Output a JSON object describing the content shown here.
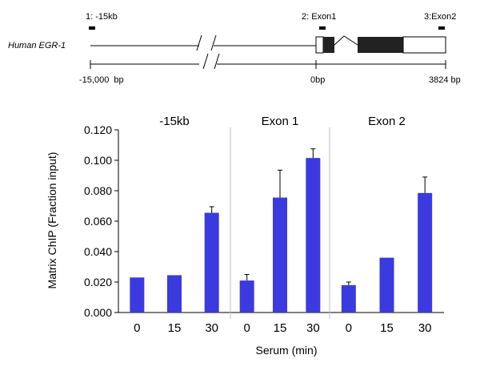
{
  "gene_map": {
    "gene_label": "Human EGR-1",
    "probes": [
      {
        "id": "probe-1",
        "label": "1: -15kb"
      },
      {
        "id": "probe-2",
        "label": "2: Exon1"
      },
      {
        "id": "probe-3",
        "label": "3:Exon2"
      }
    ],
    "scale": {
      "left": "-15,000  bp",
      "mid": "0bp",
      "right": "3824 bp"
    }
  },
  "chart_data": {
    "type": "bar",
    "ylabel": "Matrix ChIP (Fraction input)",
    "xlabel": "Serum (min)",
    "ylim": [
      0,
      0.12
    ],
    "yticks": [
      "0.000",
      "0.020",
      "0.040",
      "0.060",
      "0.080",
      "0.100",
      "0.120"
    ],
    "bar_color": "#3a3adf",
    "panels": [
      {
        "title": "-15kb",
        "categories": [
          "0",
          "15",
          "30"
        ],
        "values": [
          0.023,
          0.0245,
          0.0655
        ],
        "errors": [
          0,
          0,
          0.004
        ]
      },
      {
        "title": "Exon 1",
        "categories": [
          "0",
          "15",
          "30"
        ],
        "values": [
          0.021,
          0.0755,
          0.1015
        ],
        "errors": [
          0.004,
          0.018,
          0.006
        ]
      },
      {
        "title": "Exon 2",
        "categories": [
          "0",
          "15",
          "30"
        ],
        "values": [
          0.018,
          0.036,
          0.0785
        ],
        "errors": [
          0.002,
          0,
          0.0105
        ]
      }
    ]
  }
}
